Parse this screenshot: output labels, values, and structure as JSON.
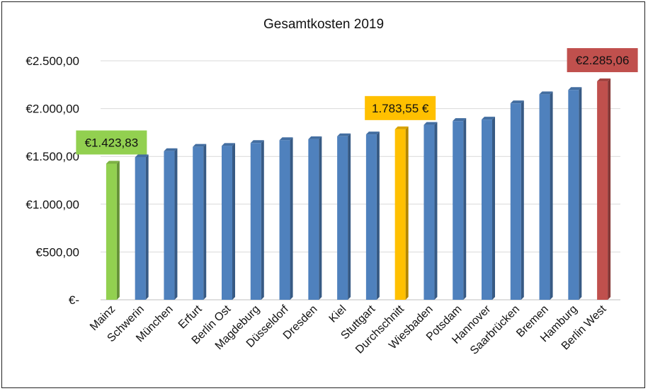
{
  "chart_data": {
    "type": "bar",
    "title": "Gesamtkosten 2019",
    "xlabel": "",
    "ylabel": "",
    "ylim": [
      0,
      2500
    ],
    "grid": true,
    "legend": "none",
    "y_ticks": [
      {
        "value": 0,
        "label": "€-"
      },
      {
        "value": 500,
        "label": "€500,00"
      },
      {
        "value": 1000,
        "label": "€1.000,00"
      },
      {
        "value": 1500,
        "label": "€1.500,00"
      },
      {
        "value": 2000,
        "label": "€2.000,00"
      },
      {
        "value": 2500,
        "label": "€2.500,00"
      }
    ],
    "categories": [
      "Mainz",
      "Schwerin",
      "München",
      "Erfurt",
      "Berlin Ost",
      "Magdeburg",
      "Düsseldorf",
      "Dresden",
      "Kiel",
      "Stuttgart",
      "Durchschnitt",
      "Wiesbaden",
      "Potsdam",
      "Hannover",
      "Saarbrücken",
      "Bremen",
      "Hamburg",
      "Berlin West"
    ],
    "values": [
      1423.83,
      1490,
      1555,
      1600,
      1610,
      1640,
      1670,
      1680,
      1710,
      1730,
      1783.55,
      1830,
      1870,
      1885,
      2055,
      2150,
      2195,
      2285.06
    ],
    "bar_colors": [
      "#92d050",
      "#4f81bd",
      "#4f81bd",
      "#4f81bd",
      "#4f81bd",
      "#4f81bd",
      "#4f81bd",
      "#4f81bd",
      "#4f81bd",
      "#4f81bd",
      "#ffc000",
      "#4f81bd",
      "#4f81bd",
      "#4f81bd",
      "#4f81bd",
      "#4f81bd",
      "#4f81bd",
      "#c0504d"
    ],
    "annotations": [
      {
        "category": "Mainz",
        "text": "€1.423,83",
        "color": "#92d050"
      },
      {
        "category": "Durchschnitt",
        "text": "1.783,55 €",
        "color": "#ffc000"
      },
      {
        "category": "Berlin West",
        "text": "€2.285,06",
        "color": "#c0504d"
      }
    ]
  }
}
